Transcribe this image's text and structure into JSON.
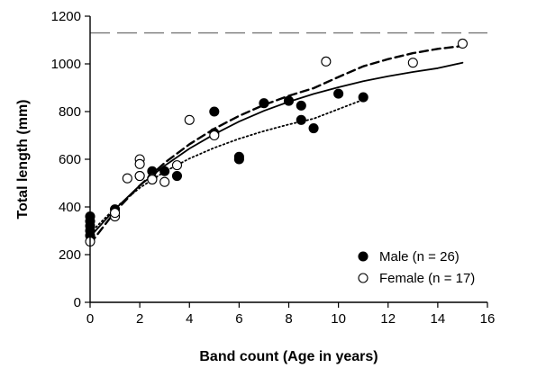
{
  "chart_data": {
    "type": "scatter",
    "xlabel": "Band count (Age in years)",
    "ylabel": "Total length (mm)",
    "xlim": [
      0,
      16
    ],
    "ylim": [
      0,
      1200
    ],
    "xticks": [
      0,
      2,
      4,
      6,
      8,
      10,
      12,
      14,
      16
    ],
    "yticks": [
      0,
      200,
      400,
      600,
      800,
      1000,
      1200
    ],
    "grid": false,
    "legend_position": "bottom-right",
    "series": [
      {
        "name": "Male (n = 26)",
        "marker": "filled-circle",
        "points": [
          [
            0,
            360
          ],
          [
            0,
            340
          ],
          [
            0,
            320
          ],
          [
            0,
            300
          ],
          [
            0,
            280
          ],
          [
            1,
            390
          ],
          [
            2,
            530
          ],
          [
            2.5,
            550
          ],
          [
            3,
            550
          ],
          [
            3.5,
            530
          ],
          [
            5,
            800
          ],
          [
            5,
            710
          ],
          [
            6,
            610
          ],
          [
            6,
            600
          ],
          [
            7,
            835
          ],
          [
            8,
            845
          ],
          [
            8.5,
            825
          ],
          [
            8.5,
            765
          ],
          [
            9,
            730
          ],
          [
            10,
            875
          ],
          [
            11,
            860
          ]
        ]
      },
      {
        "name": "Female (n = 17)",
        "marker": "open-circle",
        "points": [
          [
            0,
            255
          ],
          [
            1,
            360
          ],
          [
            1,
            375
          ],
          [
            1.5,
            520
          ],
          [
            2,
            600
          ],
          [
            2,
            580
          ],
          [
            2,
            530
          ],
          [
            2.5,
            520
          ],
          [
            2.5,
            515
          ],
          [
            3,
            505
          ],
          [
            3.5,
            575
          ],
          [
            4,
            765
          ],
          [
            5,
            700
          ],
          [
            9.5,
            1010
          ],
          [
            13,
            1005
          ],
          [
            15,
            1085
          ]
        ]
      }
    ],
    "curves": [
      {
        "style": "solid",
        "points": [
          [
            0,
            275
          ],
          [
            1,
            390
          ],
          [
            2,
            490
          ],
          [
            3,
            573
          ],
          [
            4,
            645
          ],
          [
            5,
            705
          ],
          [
            6,
            758
          ],
          [
            7,
            803
          ],
          [
            8,
            841
          ],
          [
            9,
            874
          ],
          [
            10,
            902
          ],
          [
            11,
            927
          ],
          [
            12,
            948
          ],
          [
            13,
            966
          ],
          [
            14,
            982
          ],
          [
            15,
            1005
          ]
        ]
      },
      {
        "style": "dashed",
        "points": [
          [
            0,
            245
          ],
          [
            1,
            380
          ],
          [
            2,
            490
          ],
          [
            3,
            585
          ],
          [
            4,
            663
          ],
          [
            5,
            728
          ],
          [
            6,
            782
          ],
          [
            7,
            828
          ],
          [
            8,
            866
          ],
          [
            9,
            898
          ],
          [
            10,
            945
          ],
          [
            11,
            990
          ],
          [
            12,
            1020
          ],
          [
            13,
            1045
          ],
          [
            14,
            1063
          ],
          [
            15,
            1075
          ]
        ]
      },
      {
        "style": "dotted",
        "points": [
          [
            0,
            290
          ],
          [
            1,
            395
          ],
          [
            2,
            480
          ],
          [
            3,
            548
          ],
          [
            4,
            603
          ],
          [
            5,
            648
          ],
          [
            6,
            686
          ],
          [
            7,
            718
          ],
          [
            8,
            746
          ],
          [
            9,
            770
          ],
          [
            10,
            810
          ],
          [
            11,
            850
          ]
        ]
      },
      {
        "style": "long-dash",
        "points": [
          [
            0,
            1130
          ],
          [
            16,
            1130
          ]
        ]
      }
    ]
  }
}
